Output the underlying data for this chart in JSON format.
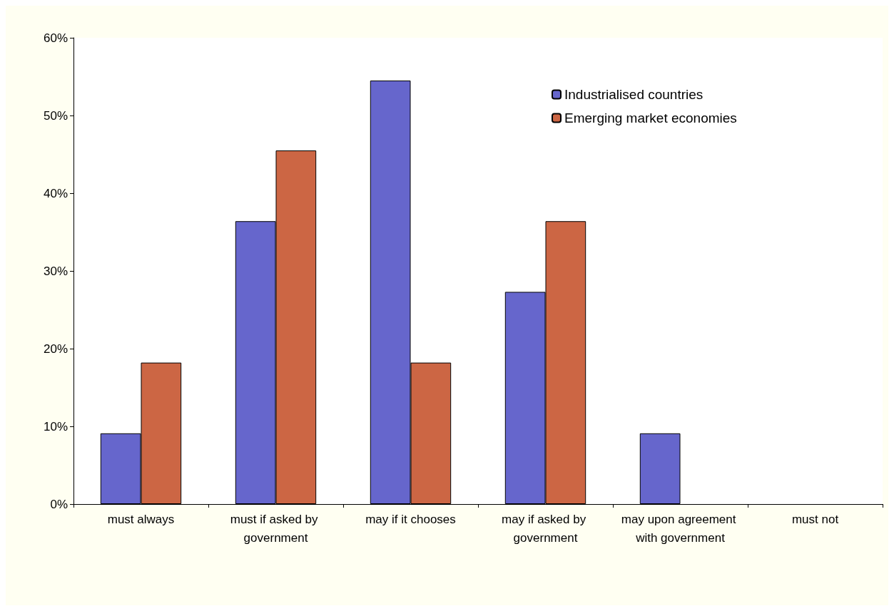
{
  "chart_data": {
    "type": "bar",
    "categories": [
      "must always",
      "must if asked by government",
      "may if it chooses",
      "may if asked by government",
      "may upon agreement with government",
      "must not"
    ],
    "series": [
      {
        "name": "Industrialised countries",
        "color": "#6666cc",
        "values": [
          9.1,
          36.4,
          54.5,
          27.3,
          9.1,
          0
        ]
      },
      {
        "name": "Emerging market economies",
        "color": "#cc6644",
        "values": [
          18.2,
          45.5,
          18.2,
          36.4,
          0,
          0
        ]
      }
    ],
    "ylim": [
      0,
      60
    ],
    "yticks": [
      {
        "value": 0,
        "label": "0%"
      },
      {
        "value": 10,
        "label": "10%"
      },
      {
        "value": 20,
        "label": "20%"
      },
      {
        "value": 30,
        "label": "30%"
      },
      {
        "value": 40,
        "label": "40%"
      },
      {
        "value": 50,
        "label": "50%"
      },
      {
        "value": 60,
        "label": "60%"
      }
    ],
    "grid": false,
    "legend": "top right"
  }
}
